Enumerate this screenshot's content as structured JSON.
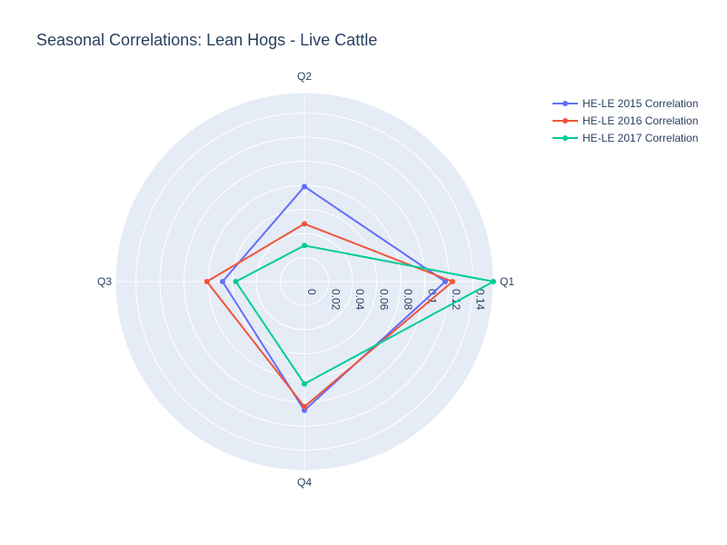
{
  "chart_data": {
    "type": "radar",
    "title": "Seasonal Correlations: Lean Hogs - Live Cattle",
    "categories": [
      "Q1",
      "Q2",
      "Q3",
      "Q4"
    ],
    "radial_ticks": [
      "0",
      "0.02",
      "0.04",
      "0.06",
      "0.08",
      "0.1",
      "0.12",
      "0.14"
    ],
    "radial_range": [
      0,
      0.157
    ],
    "series": [
      {
        "name": "HE-LE 2015 Correlation",
        "values": [
          0.117,
          0.079,
          0.068,
          0.107
        ],
        "color": "#636efa"
      },
      {
        "name": "HE-LE 2016 Correlation",
        "values": [
          0.123,
          0.048,
          0.081,
          0.104
        ],
        "color": "#ef553b"
      },
      {
        "name": "HE-LE 2017 Correlation",
        "values": [
          0.157,
          0.03,
          0.057,
          0.085
        ],
        "color": "#00cc96"
      }
    ],
    "legend": "top-right",
    "grid": true,
    "polar_background": "#e5ecf6"
  }
}
